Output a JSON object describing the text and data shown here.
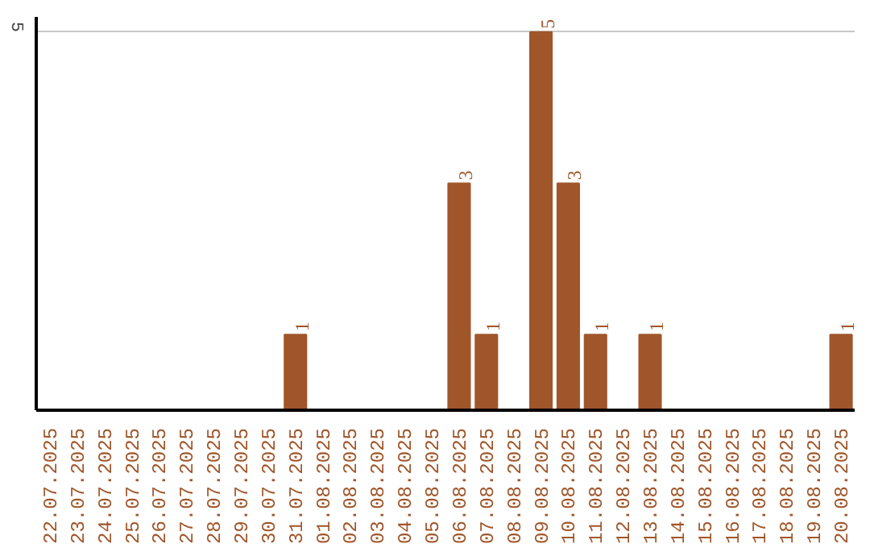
{
  "chart_data": {
    "type": "bar",
    "categories": [
      "22.07.2025",
      "23.07.2025",
      "24.07.2025",
      "25.07.2025",
      "26.07.2025",
      "27.07.2025",
      "28.07.2025",
      "29.07.2025",
      "30.07.2025",
      "31.07.2025",
      "01.08.2025",
      "02.08.2025",
      "03.08.2025",
      "04.08.2025",
      "05.08.2025",
      "06.08.2025",
      "07.08.2025",
      "08.08.2025",
      "09.08.2025",
      "10.08.2025",
      "11.08.2025",
      "12.08.2025",
      "13.08.2025",
      "14.08.2025",
      "15.08.2025",
      "16.08.2025",
      "17.08.2025",
      "18.08.2025",
      "19.08.2025",
      "20.08.2025"
    ],
    "values": [
      0,
      0,
      0,
      0,
      0,
      0,
      0,
      0,
      0,
      1,
      0,
      0,
      0,
      0,
      0,
      3,
      1,
      0,
      5,
      3,
      1,
      0,
      1,
      0,
      0,
      0,
      0,
      0,
      0,
      1
    ],
    "value_labels": [
      null,
      null,
      null,
      null,
      null,
      null,
      null,
      null,
      null,
      "1",
      null,
      null,
      null,
      null,
      null,
      "3",
      "1",
      null,
      "5",
      "3",
      "1",
      null,
      "1",
      null,
      null,
      null,
      null,
      null,
      null,
      "1"
    ],
    "color": "#a0562a",
    "ylim": [
      0,
      5.2
    ],
    "yticks": [
      5
    ],
    "grid": "y"
  }
}
